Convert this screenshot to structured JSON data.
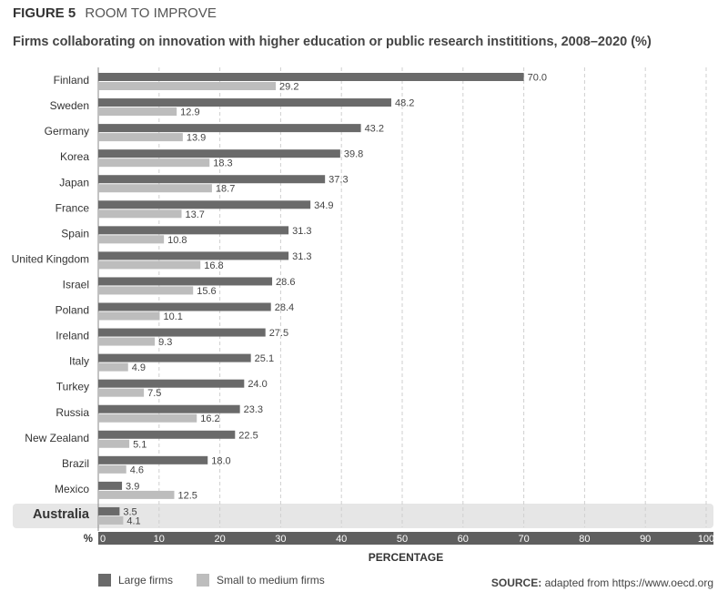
{
  "figure": {
    "label": "FIGURE 5",
    "name": "ROOM TO IMPROVE"
  },
  "source": {
    "label": "SOURCE:",
    "text": "adapted from https://www.oecd.org"
  },
  "colors": {
    "large": "#6a6a6a",
    "small": "#bdbdbd",
    "axis_band": "#5f5f5f",
    "highlight_band": "#e6e6e6",
    "grid": "#cfcfcf"
  },
  "chart_data": {
    "type": "bar",
    "orientation": "horizontal",
    "title": "Firms collaborating on innovation with higher education or public research instititions, 2008–2020 (%)",
    "xlabel": "PERCENTAGE",
    "axis_unit_label": "%",
    "xlim": [
      0,
      100
    ],
    "xticks": [
      0,
      10,
      20,
      30,
      40,
      50,
      60,
      70,
      80,
      90,
      100
    ],
    "grid": "vertical dashed",
    "legend_position": "bottom-left",
    "highlight_category": "Australia",
    "categories": [
      "Finland",
      "Sweden",
      "Germany",
      "Korea",
      "Japan",
      "France",
      "Spain",
      "United Kingdom",
      "Israel",
      "Poland",
      "Ireland",
      "Italy",
      "Turkey",
      "Russia",
      "New Zealand",
      "Brazil",
      "Mexico",
      "Australia"
    ],
    "series": [
      {
        "name": "Large firms",
        "values": [
          70.0,
          48.2,
          43.2,
          39.8,
          37.3,
          34.9,
          31.3,
          31.3,
          28.6,
          28.4,
          27.5,
          25.1,
          24.0,
          23.3,
          22.5,
          18.0,
          3.9,
          3.5
        ],
        "labels": [
          "70.0",
          "48.2",
          "43.2",
          "39.8",
          "37.3",
          "34.9",
          "31.3",
          "31.3",
          "28.6",
          "28.4",
          "27.5",
          "25.1",
          "24.0",
          "23.3",
          "22.5",
          "18.0",
          "3.9",
          "3.5"
        ]
      },
      {
        "name": "Small to medium firms",
        "values": [
          29.2,
          12.9,
          13.9,
          18.3,
          18.7,
          13.7,
          10.8,
          16.8,
          15.6,
          10.1,
          9.3,
          4.9,
          7.5,
          16.2,
          5.1,
          4.6,
          12.5,
          4.1
        ],
        "labels": [
          "29.2",
          "12.9",
          "13.9",
          "18.3",
          "18.7",
          "13.7",
          "10.8",
          "16.8",
          "15.6",
          "10.1",
          "9.3",
          "4.9",
          "7.5",
          "16.2",
          "5.1",
          "4.6",
          "12.5",
          "4.1"
        ]
      }
    ]
  }
}
